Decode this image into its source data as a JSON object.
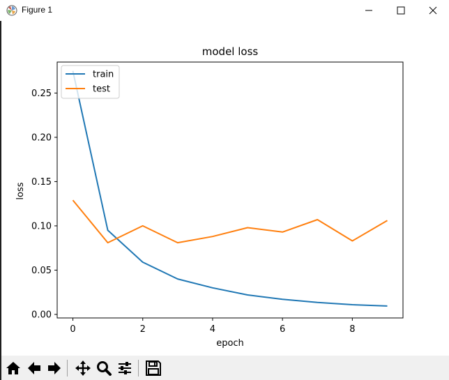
{
  "window": {
    "title": "Figure 1",
    "icon": "matplotlib-icon",
    "controls": [
      "minimize-icon",
      "maximize-icon",
      "close-icon"
    ]
  },
  "colors": {
    "train": "#1f77b4",
    "test": "#ff7f0e",
    "toolbar_bg": "#f0f0f0"
  },
  "chart_data": {
    "type": "line",
    "title": "model loss",
    "xlabel": "epoch",
    "ylabel": "loss",
    "xlim": [
      -0.45,
      9.45
    ],
    "ylim": [
      -0.004,
      0.285
    ],
    "xticks": [
      0,
      2,
      4,
      6,
      8
    ],
    "xtick_labels": [
      "0",
      "2",
      "4",
      "6",
      "8"
    ],
    "yticks": [
      0.0,
      0.05,
      0.1,
      0.15,
      0.2,
      0.25
    ],
    "ytick_labels": [
      "0.00",
      "0.05",
      "0.10",
      "0.15",
      "0.20",
      "0.25"
    ],
    "grid": false,
    "legend": "upper left",
    "x": [
      0,
      1,
      2,
      3,
      4,
      5,
      6,
      7,
      8,
      9
    ],
    "series": [
      {
        "name": "train",
        "values": [
          0.275,
          0.095,
          0.059,
          0.04,
          0.03,
          0.022,
          0.017,
          0.0135,
          0.011,
          0.0095
        ]
      },
      {
        "name": "test",
        "values": [
          0.129,
          0.081,
          0.1,
          0.081,
          0.088,
          0.098,
          0.093,
          0.107,
          0.083,
          0.106
        ]
      }
    ]
  },
  "toolbar": {
    "buttons": [
      {
        "name": "home-button",
        "icon": "home-icon"
      },
      {
        "name": "back-button",
        "icon": "arrow-left-icon"
      },
      {
        "name": "forward-button",
        "icon": "arrow-right-icon"
      },
      {
        "name": "pan-button",
        "icon": "move-icon"
      },
      {
        "name": "zoom-button",
        "icon": "magnifier-icon"
      },
      {
        "name": "configure-subplots-button",
        "icon": "sliders-icon"
      },
      {
        "name": "save-button",
        "icon": "floppy-icon"
      }
    ]
  }
}
